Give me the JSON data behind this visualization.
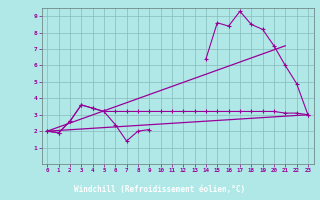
{
  "bg_color": "#b0e8e8",
  "label_bg": "#660066",
  "label_fg": "#ffffff",
  "line_color": "#990099",
  "grid_color": "#88bbbb",
  "xlabel": "Windchill (Refroidissement éolien,°C)",
  "xlim": [
    -0.5,
    23.5
  ],
  "ylim": [
    0,
    9.5
  ],
  "xtick_vals": [
    0,
    1,
    2,
    3,
    4,
    5,
    6,
    7,
    8,
    9,
    10,
    11,
    12,
    13,
    14,
    15,
    16,
    17,
    18,
    19,
    20,
    21,
    22,
    23
  ],
  "ytick_vals": [
    1,
    2,
    3,
    4,
    5,
    6,
    7,
    8,
    9
  ],
  "line1_x": [
    0,
    1,
    2,
    3,
    4,
    5,
    6,
    7,
    8,
    9,
    10,
    11,
    12,
    13,
    14,
    15,
    16,
    17,
    18,
    19,
    20,
    21,
    22,
    23
  ],
  "line1_y": [
    2.0,
    1.9,
    2.6,
    3.6,
    3.4,
    3.2,
    2.4,
    1.4,
    2.0,
    2.1,
    null,
    null,
    null,
    null,
    6.4,
    8.6,
    8.4,
    9.3,
    8.5,
    8.2,
    7.2,
    6.0,
    4.9,
    3.0
  ],
  "line2_x": [
    0,
    1,
    2,
    3,
    4,
    5,
    6,
    7,
    8,
    9,
    10,
    11,
    12,
    13,
    14,
    15,
    16,
    17,
    18,
    19,
    20,
    21,
    22,
    23
  ],
  "line2_y": [
    2.0,
    1.9,
    2.6,
    3.6,
    3.4,
    3.2,
    3.2,
    3.2,
    3.2,
    3.2,
    3.2,
    3.2,
    3.2,
    3.2,
    3.2,
    3.2,
    3.2,
    3.2,
    3.2,
    3.2,
    3.2,
    3.1,
    3.1,
    3.0
  ],
  "line3_x": [
    0,
    23
  ],
  "line3_y": [
    2.0,
    3.0
  ],
  "line4_x": [
    0,
    21
  ],
  "line4_y": [
    2.0,
    7.2
  ]
}
